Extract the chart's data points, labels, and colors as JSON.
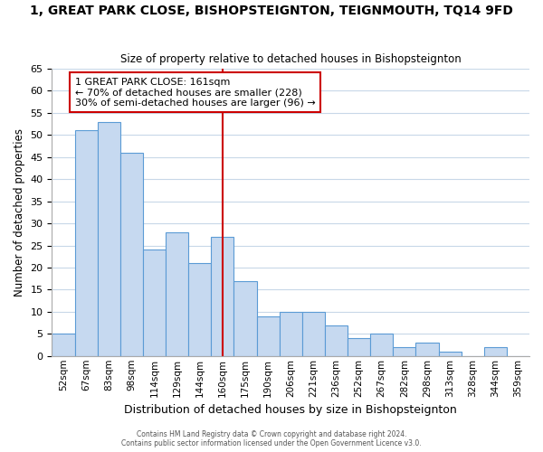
{
  "title": "1, GREAT PARK CLOSE, BISHOPSTEIGNTON, TEIGNMOUTH, TQ14 9FD",
  "subtitle": "Size of property relative to detached houses in Bishopsteignton",
  "xlabel": "Distribution of detached houses by size in Bishopsteignton",
  "ylabel": "Number of detached properties",
  "bar_labels": [
    "52sqm",
    "67sqm",
    "83sqm",
    "98sqm",
    "114sqm",
    "129sqm",
    "144sqm",
    "160sqm",
    "175sqm",
    "190sqm",
    "206sqm",
    "221sqm",
    "236sqm",
    "252sqm",
    "267sqm",
    "282sqm",
    "298sqm",
    "313sqm",
    "328sqm",
    "344sqm",
    "359sqm"
  ],
  "bar_values": [
    5,
    51,
    53,
    46,
    24,
    28,
    21,
    27,
    17,
    9,
    10,
    10,
    7,
    4,
    5,
    2,
    3,
    1,
    0,
    2,
    0
  ],
  "bar_color": "#c6d9f0",
  "bar_edge_color": "#5b9bd5",
  "highlight_index": 7,
  "highlight_line_color": "#cc0000",
  "ylim": [
    0,
    65
  ],
  "yticks": [
    0,
    5,
    10,
    15,
    20,
    25,
    30,
    35,
    40,
    45,
    50,
    55,
    60,
    65
  ],
  "annotation_title": "1 GREAT PARK CLOSE: 161sqm",
  "annotation_line1": "← 70% of detached houses are smaller (228)",
  "annotation_line2": "30% of semi-detached houses are larger (96) →",
  "annotation_box_color": "#ffffff",
  "annotation_box_edge": "#cc0000",
  "footer1": "Contains HM Land Registry data © Crown copyright and database right 2024.",
  "footer2": "Contains public sector information licensed under the Open Government Licence v3.0.",
  "background_color": "#ffffff",
  "grid_color": "#c8d8e8"
}
